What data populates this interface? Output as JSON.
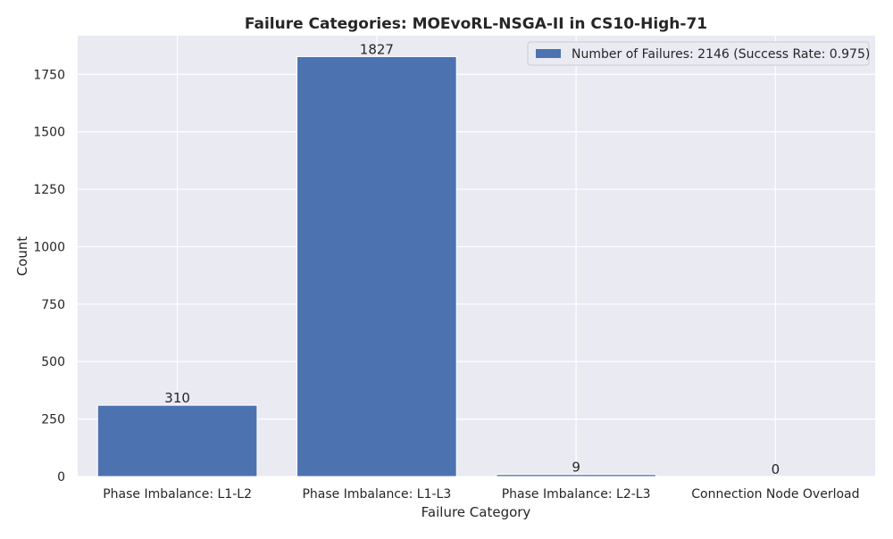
{
  "chart_data": {
    "type": "bar",
    "title": "Failure Categories: MOEvoRL-NSGA-II in CS10-High-71",
    "xlabel": "Failure Category",
    "ylabel": "Count",
    "categories": [
      "Phase Imbalance: L1-L2",
      "Phase Imbalance: L1-L3",
      "Phase Imbalance: L2-L3",
      "Connection Node Overload"
    ],
    "series": [
      {
        "name": "Number of Failures: 2146 (Success Rate: 0.975)",
        "values": [
          310,
          1827,
          9,
          0
        ]
      }
    ],
    "data_labels": [
      "310",
      "1827",
      "9",
      "0"
    ],
    "ylim": [
      0,
      1918
    ],
    "yticks": [
      0,
      250,
      500,
      750,
      1000,
      1250,
      1500,
      1750
    ],
    "grid": true,
    "legend_position": "top-right",
    "colors": {
      "bar": "#4c72b0",
      "plot_background": "#eaeaf2",
      "grid": "#ffffff"
    }
  }
}
